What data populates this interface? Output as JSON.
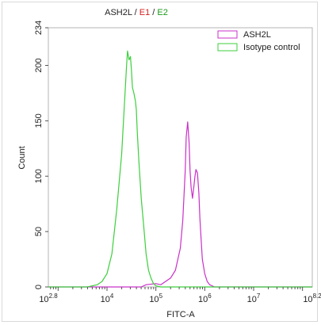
{
  "chart_data": {
    "type": "line",
    "title_parts": [
      {
        "text": "ASH2L",
        "color": "#222222"
      },
      {
        "text": " / ",
        "color": "#222222"
      },
      {
        "text": "E1",
        "color": "#d42020"
      },
      {
        "text": " / ",
        "color": "#222222"
      },
      {
        "text": "E2",
        "color": "#1a9a1a"
      }
    ],
    "xlabel": "FITC-A",
    "ylabel": "Count",
    "x_scale": "log10",
    "xlim_log10": [
      2.8,
      8.2
    ],
    "ylim": [
      0,
      234
    ],
    "y_ticks": [
      0,
      50,
      100,
      150,
      200,
      234
    ],
    "x_tick_labels": [
      {
        "log": 2.8,
        "base": "10",
        "exp": "2.8"
      },
      {
        "log": 4,
        "base": "10",
        "exp": "4"
      },
      {
        "log": 5,
        "base": "10",
        "exp": "5"
      },
      {
        "log": 6,
        "base": "10",
        "exp": "6"
      },
      {
        "log": 7,
        "base": "10",
        "exp": "7"
      },
      {
        "log": 8.2,
        "base": "10",
        "exp": "8.2"
      }
    ],
    "legend_position": "top-right",
    "series": [
      {
        "name": "ASH2L",
        "color": "#c930c9",
        "x_log10": [
          2.8,
          4.7,
          4.8,
          5.0,
          5.1,
          5.2,
          5.3,
          5.4,
          5.5,
          5.55,
          5.6,
          5.62,
          5.65,
          5.68,
          5.7,
          5.72,
          5.75,
          5.78,
          5.8,
          5.82,
          5.85,
          5.88,
          5.9,
          5.93,
          5.95,
          6.0,
          6.05,
          6.1,
          6.2,
          6.3,
          8.2
        ],
        "y": [
          0,
          0,
          2,
          3,
          2,
          5,
          8,
          15,
          35,
          60,
          105,
          135,
          149,
          130,
          105,
          90,
          80,
          92,
          100,
          106,
          103,
          85,
          62,
          40,
          25,
          12,
          5,
          2,
          0,
          0,
          0
        ]
      },
      {
        "name": "Isotype control",
        "color": "#3ccf3c",
        "x_log10": [
          2.8,
          3.6,
          3.8,
          3.9,
          4.0,
          4.1,
          4.2,
          4.3,
          4.35,
          4.4,
          4.42,
          4.45,
          4.48,
          4.5,
          4.52,
          4.55,
          4.58,
          4.6,
          4.62,
          4.65,
          4.7,
          4.75,
          4.8,
          4.85,
          4.9,
          4.95,
          5.0,
          5.1,
          8.2
        ],
        "y": [
          0,
          0,
          2,
          5,
          12,
          30,
          70,
          120,
          160,
          200,
          213,
          205,
          208,
          196,
          180,
          175,
          168,
          160,
          140,
          115,
          80,
          55,
          30,
          15,
          8,
          3,
          1,
          0,
          0
        ]
      }
    ]
  }
}
